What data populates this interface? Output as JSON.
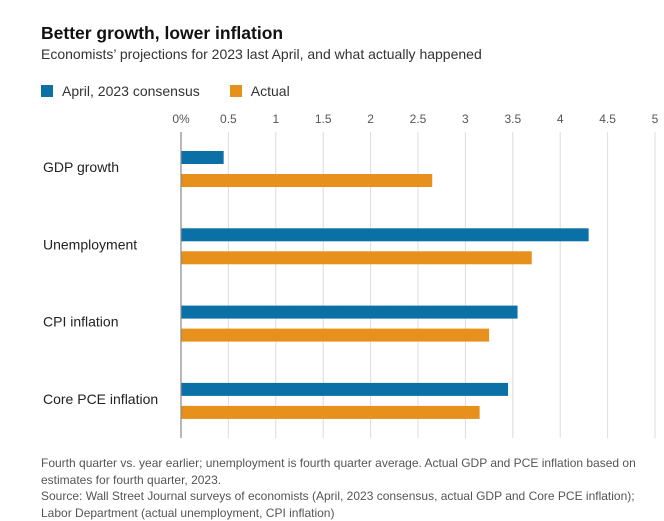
{
  "title": "Better growth, lower inflation",
  "subtitle": "Economists’ projections for 2023 last April, and what actually happened",
  "colors": {
    "consensus": "#0a70a6",
    "actual": "#e8901c",
    "grid": "#dcdcdc",
    "axis": "#888888"
  },
  "chart_data": {
    "type": "bar",
    "orientation": "horizontal",
    "categories": [
      "GDP growth",
      "Unemployment",
      "CPI inflation",
      "Core PCE inflation"
    ],
    "series": [
      {
        "name": "April, 2023 consensus",
        "values": [
          0.45,
          4.3,
          3.55,
          3.45
        ]
      },
      {
        "name": "Actual",
        "values": [
          2.65,
          3.7,
          3.25,
          3.15
        ]
      }
    ],
    "xlim": [
      0,
      5
    ],
    "ticks": [
      "0%",
      "0.5",
      "1",
      "1.5",
      "2",
      "2.5",
      "3",
      "3.5",
      "4",
      "4.5",
      "5"
    ],
    "tick_values": [
      0,
      0.5,
      1,
      1.5,
      2,
      2.5,
      3,
      3.5,
      4,
      4.5,
      5
    ],
    "grid": true,
    "legend": "top-left"
  },
  "footnote": {
    "line1": "Fourth quarter vs. year earlier; unemployment is fourth quarter average. Actual GDP and PCE inflation based on estimates for fourth quarter, 2023.",
    "line2": "Source: Wall Street Journal surveys of economists (April, 2023 consensus, actual GDP and Core PCE inflation); Labor Department (actual unemployment, CPI inflation)"
  }
}
